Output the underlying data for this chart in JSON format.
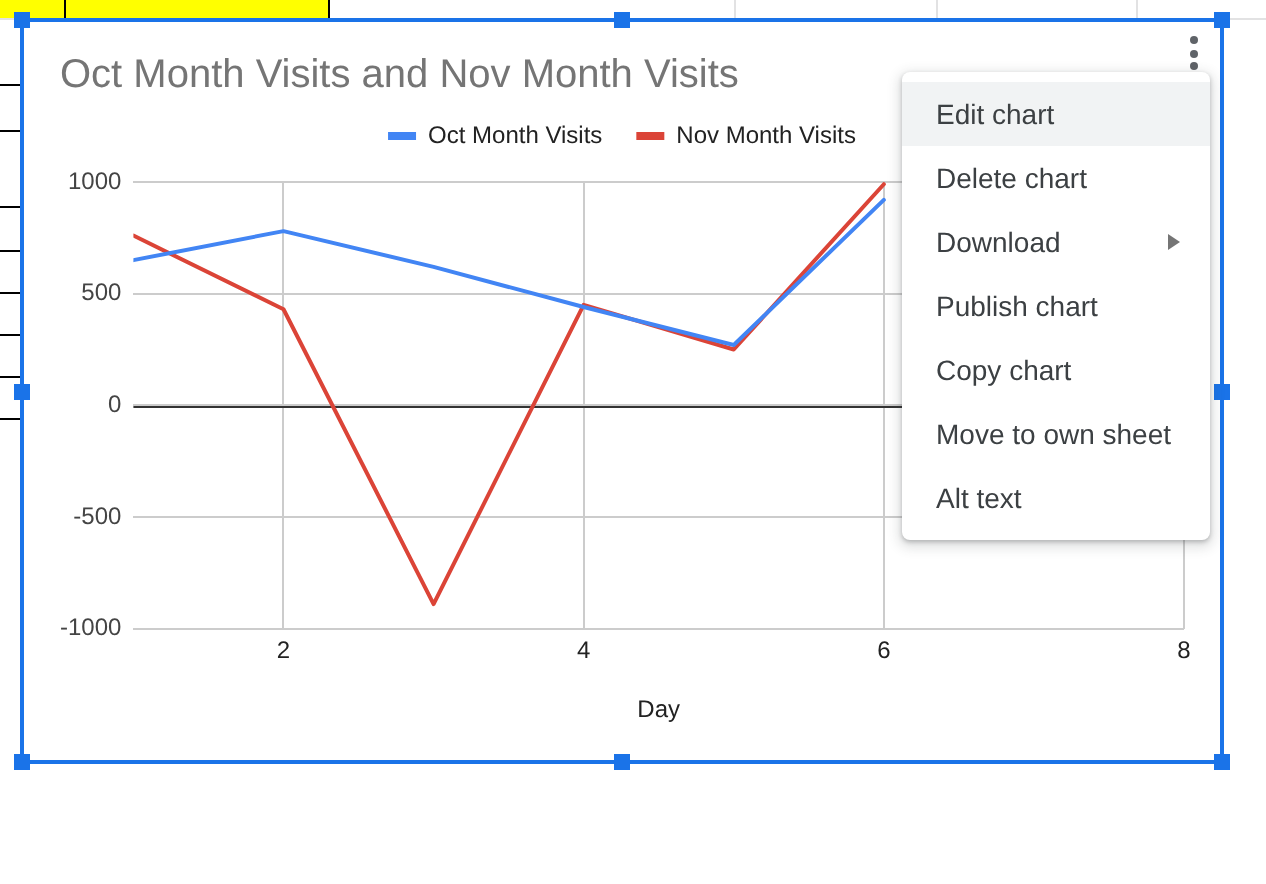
{
  "chart_data": {
    "type": "line",
    "title": "Oct Month Visits and Nov Month Visits",
    "xlabel": "Day",
    "x": [
      1,
      2,
      3,
      4,
      5,
      6
    ],
    "series": [
      {
        "name": "Oct Month Visits",
        "color": "#4285f4",
        "values": [
          650,
          780,
          620,
          440,
          270,
          920
        ]
      },
      {
        "name": "Nov Month Visits",
        "color": "#db4437",
        "values": [
          760,
          430,
          -890,
          450,
          250,
          990
        ]
      }
    ],
    "xlim": [
      1,
      8
    ],
    "ylim": [
      -1000,
      1000
    ],
    "xticks": [
      2,
      4,
      6,
      8
    ],
    "yticks": [
      -1000,
      -500,
      0,
      500,
      1000
    ],
    "grid": true,
    "legend": "top",
    "marker": "none",
    "ref_lines": [
      {
        "axis": "y",
        "value": 0,
        "color": "#333333"
      }
    ],
    "annotations": [
      "Edit chart",
      "Delete chart",
      "Download",
      "Publish chart",
      "Copy chart",
      "Move to own sheet",
      "Alt text"
    ]
  }
}
